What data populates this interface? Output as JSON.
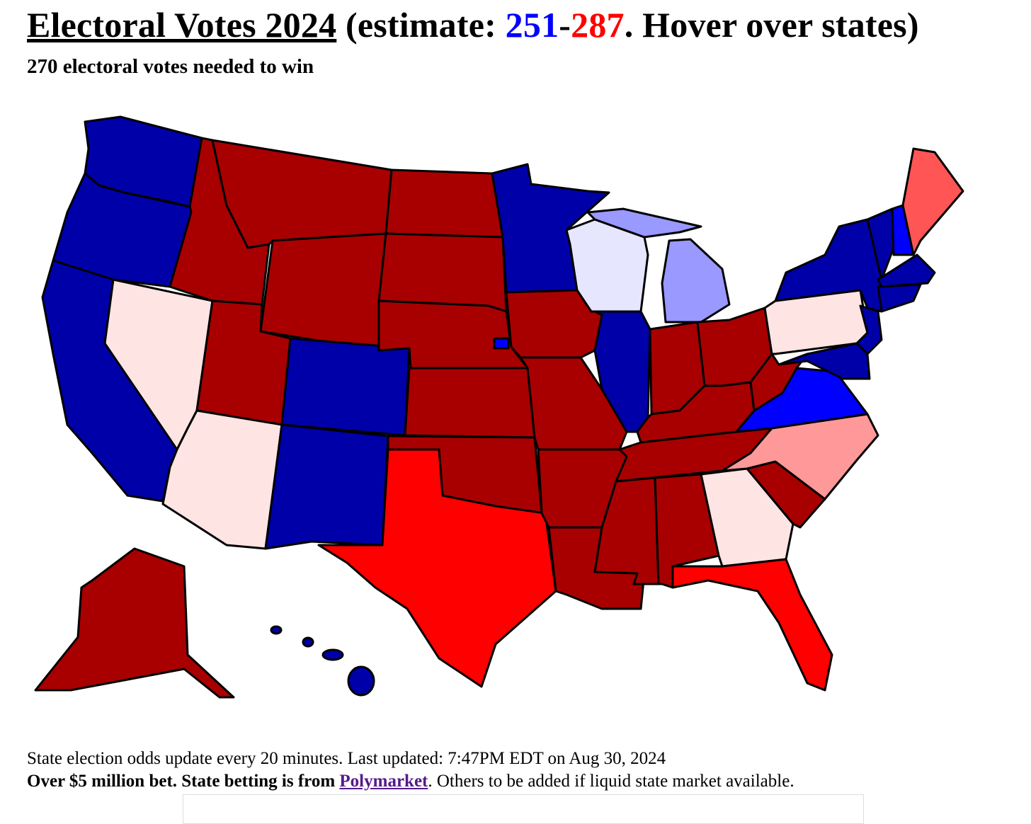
{
  "header": {
    "title_link": "Electoral Votes 2024",
    "title_prefix": " (estimate: ",
    "dem_votes": 251,
    "separator": "-",
    "rep_votes": 287,
    "title_suffix": ". Hover over states)",
    "subtitle": "270 electoral votes needed to win"
  },
  "footer": {
    "update_note": "State election odds update every 20 minutes. Last updated: 7:47PM EDT on Aug 30, 2024",
    "bet_note": "Over $5 million bet. State betting is from ",
    "source_link": "Polymarket",
    "closing_note": ". Others to be added if liquid state market available."
  }
}
